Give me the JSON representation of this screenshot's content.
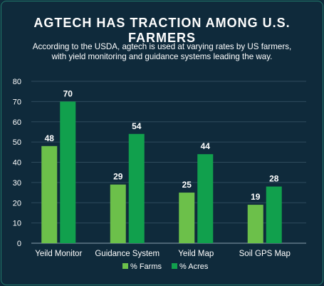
{
  "chart_data": {
    "type": "bar",
    "title": "AGTECH HAS TRACTION AMONG U.S. FARMERS",
    "subtitle_lines": [
      "According to the USDA, agtech is used at varying rates by US farmers,",
      "with yield monitoring and guidance systems leading the way."
    ],
    "categories": [
      "Yeild Monitor",
      "Guidance System",
      "Yeild Map",
      "Soil GPS Map"
    ],
    "series": [
      {
        "name": "% Farms",
        "values": [
          48,
          29,
          25,
          19
        ],
        "color": "#6cc04a"
      },
      {
        "name": "% Acres",
        "values": [
          70,
          54,
          44,
          28
        ],
        "color": "#11a04d"
      }
    ],
    "yticks": [
      0,
      10,
      20,
      30,
      40,
      50,
      60,
      70,
      80
    ],
    "ylim": [
      0,
      80
    ],
    "grid": true,
    "legend_position": "bottom-center"
  }
}
